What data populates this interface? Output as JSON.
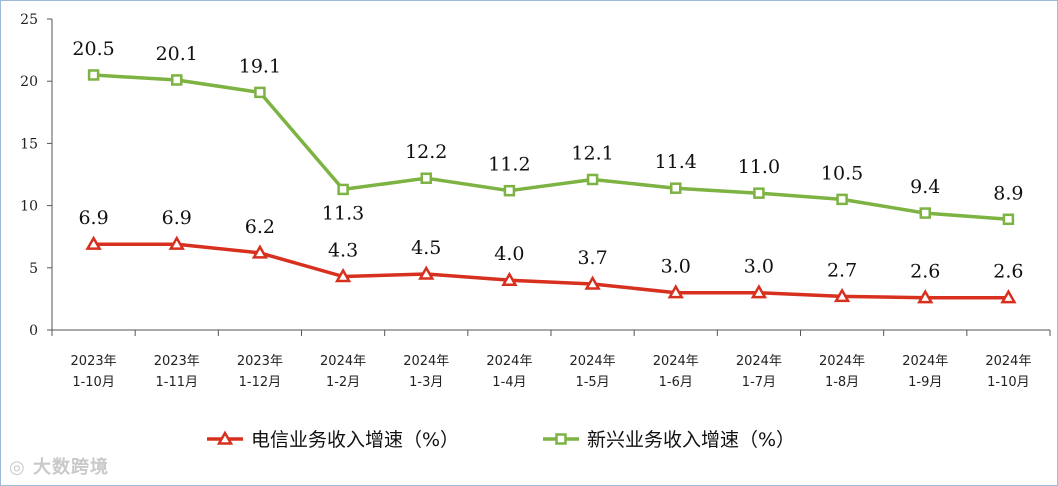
{
  "chart_data": {
    "type": "line",
    "categories": [
      [
        "2023年",
        "1-10月"
      ],
      [
        "2023年",
        "1-11月"
      ],
      [
        "2023年",
        "1-12月"
      ],
      [
        "2024年",
        "1-2月"
      ],
      [
        "2024年",
        "1-3月"
      ],
      [
        "2024年",
        "1-4月"
      ],
      [
        "2024年",
        "1-5月"
      ],
      [
        "2024年",
        "1-6月"
      ],
      [
        "2024年",
        "1-7月"
      ],
      [
        "2024年",
        "1-8月"
      ],
      [
        "2024年",
        "1-9月"
      ],
      [
        "2024年",
        "1-10月"
      ]
    ],
    "yticks": [
      0,
      5,
      10,
      15,
      20,
      25
    ],
    "ylim": [
      0,
      25
    ],
    "legend_position": "bottom",
    "series": [
      {
        "name": "电信业务收入增速（%）",
        "color": "#d7301f",
        "marker": "triangle",
        "values": [
          6.9,
          6.9,
          6.2,
          4.3,
          4.5,
          4.0,
          3.7,
          3.0,
          3.0,
          2.7,
          2.6,
          2.6
        ],
        "labels": [
          "6.9",
          "6.9",
          "6.2",
          "4.3",
          "4.5",
          "4.0",
          "3.7",
          "3.0",
          "3.0",
          "2.7",
          "2.6",
          "2.6"
        ]
      },
      {
        "name": "新兴业务收入增速（%）",
        "color": "#7cb342",
        "marker": "square",
        "values": [
          20.5,
          20.1,
          19.1,
          11.3,
          12.2,
          11.2,
          12.1,
          11.4,
          11.0,
          10.5,
          9.4,
          8.9
        ],
        "labels": [
          "20.5",
          "20.1",
          "19.1",
          "11.3",
          "12.2",
          "11.2",
          "12.1",
          "11.4",
          "11.0",
          "10.5",
          "9.4",
          "8.9"
        ]
      }
    ]
  },
  "watermark": "大数跨境"
}
